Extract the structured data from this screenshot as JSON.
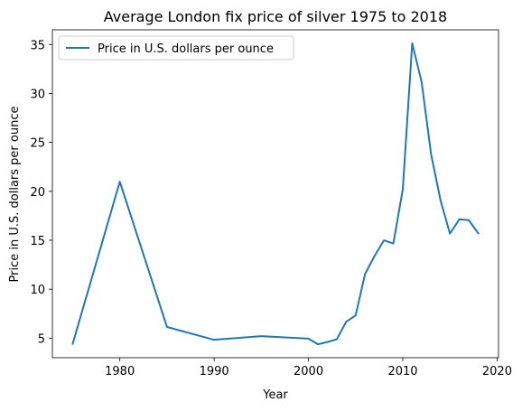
{
  "chart_data": {
    "type": "line",
    "title": "Average London fix price of silver 1975 to 2018",
    "xlabel": "Year",
    "ylabel": "Price in U.S. dollars per ounce",
    "xlim": [
      1972.85,
      2020.15
    ],
    "ylim": [
      3.0,
      36.5
    ],
    "xticks": [
      1980,
      1990,
      2000,
      2010,
      2020
    ],
    "yticks": [
      5,
      10,
      15,
      20,
      25,
      30,
      35
    ],
    "grid": false,
    "legend_position": "top-left",
    "series": [
      {
        "name": "Price in U.S. dollars per ounce",
        "color": "#1f77b4",
        "x": [
          1975,
          1980,
          1985,
          1990,
          1995,
          2000,
          2001,
          2002,
          2003,
          2004,
          2005,
          2006,
          2007,
          2008,
          2009,
          2010,
          2011,
          2012,
          2013,
          2014,
          2015,
          2016,
          2017,
          2018
        ],
        "y": [
          4.42,
          20.98,
          6.14,
          4.83,
          5.2,
          4.95,
          4.37,
          4.6,
          4.88,
          6.67,
          7.32,
          11.55,
          13.38,
          14.99,
          14.67,
          20.19,
          35.12,
          31.15,
          23.79,
          19.08,
          15.68,
          17.14,
          17.05,
          15.71
        ]
      }
    ]
  }
}
